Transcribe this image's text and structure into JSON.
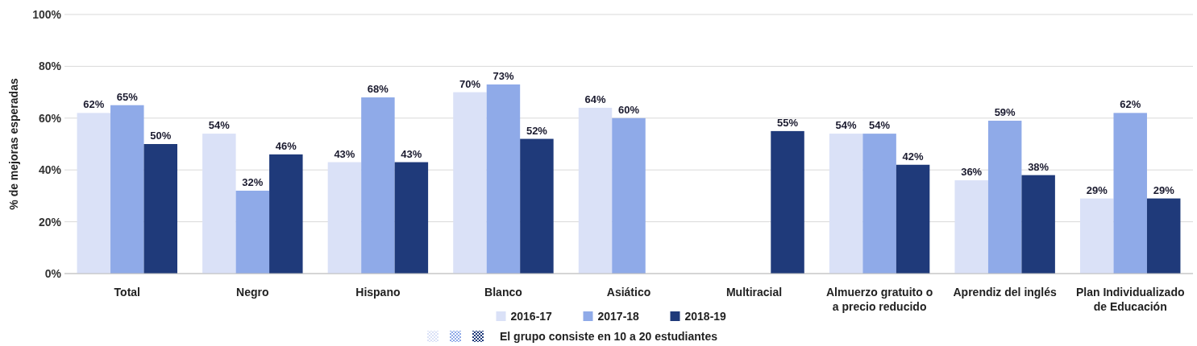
{
  "chart_data": {
    "type": "bar",
    "ylabel": "% de mejoras esperadas",
    "categories": [
      "Total",
      "Negro",
      "Hispano",
      "Blanco",
      "Asiático",
      "Multiracial",
      "Almuerzo gratuito o a precio reducido",
      "Aprendiz del inglés",
      "Plan Individualizado de Educación"
    ],
    "series": [
      {
        "name": "2016-17",
        "color": "#dae1f7",
        "values": [
          62,
          54,
          43,
          70,
          64,
          null,
          54,
          36,
          29
        ],
        "value_labels": [
          "62%",
          "54%",
          "43%",
          "70%",
          "64%",
          null,
          "54%",
          "36%",
          "29%"
        ]
      },
      {
        "name": "2017-18",
        "color": "#8faae8",
        "values": [
          65,
          32,
          68,
          73,
          60,
          null,
          54,
          59,
          62
        ],
        "value_labels": [
          "65%",
          "32%",
          "68%",
          "73%",
          "60%",
          null,
          "54%",
          "59%",
          "62%"
        ]
      },
      {
        "name": "2018-19",
        "color": "#1f3a7a",
        "values": [
          50,
          46,
          43,
          52,
          null,
          55,
          42,
          38,
          29
        ],
        "value_labels": [
          "50%",
          "46%",
          "43%",
          "52%",
          null,
          "55%",
          "42%",
          "38%",
          "29%"
        ]
      }
    ],
    "ylim": [
      0,
      100
    ],
    "yticks": [
      {
        "value": 0,
        "label": "0%"
      },
      {
        "value": 20,
        "label": "20%"
      },
      {
        "value": 40,
        "label": "40%"
      },
      {
        "value": 60,
        "label": "60%"
      },
      {
        "value": 80,
        "label": "80%"
      },
      {
        "value": 100,
        "label": "100%"
      }
    ],
    "grid": "y",
    "legend": "bottom",
    "annotations": [
      "El grupo consiste en 10 a 20 estudiantes"
    ]
  }
}
